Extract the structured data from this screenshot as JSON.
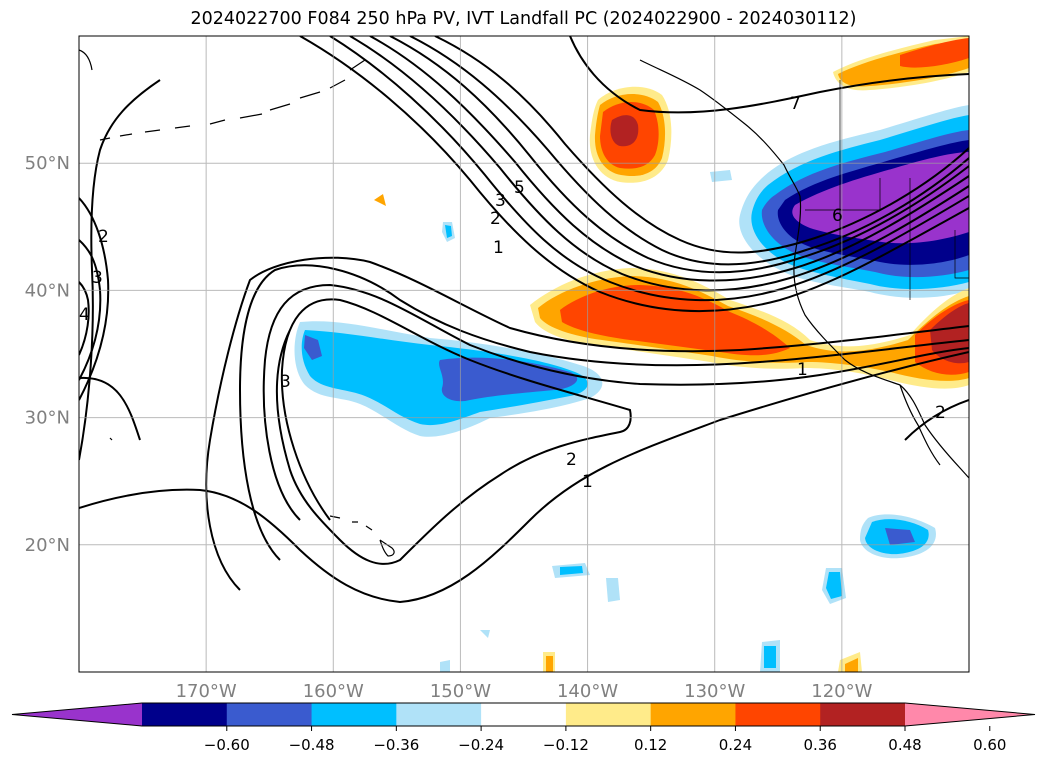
{
  "title": "2024022700 F084 250 hPa PV, IVT Landfall PC (2024022900 - 2024030112)",
  "map": {
    "lon_range": [
      -180,
      -110
    ],
    "lat_range": [
      10,
      60
    ],
    "projection": "PlateCarree",
    "grid": true,
    "lon_ticks": [
      {
        "value": -170,
        "label": "170°W"
      },
      {
        "value": -160,
        "label": "160°W"
      },
      {
        "value": -150,
        "label": "150°W"
      },
      {
        "value": -140,
        "label": "140°W"
      },
      {
        "value": -130,
        "label": "130°W"
      },
      {
        "value": -120,
        "label": "120°W"
      }
    ],
    "lat_ticks": [
      {
        "value": 20,
        "label": "20°N"
      },
      {
        "value": 30,
        "label": "30°N"
      },
      {
        "value": 40,
        "label": "40°N"
      },
      {
        "value": 50,
        "label": "50°N"
      }
    ],
    "contour_labels": [
      "7",
      "5",
      "3",
      "2",
      "1",
      "6",
      "1",
      "2",
      "1",
      "3",
      "2",
      "3",
      "4",
      "2"
    ],
    "tick_label_color": "#808080",
    "contour_color": "#000000",
    "coastline_color": "#000000"
  },
  "colorbar": {
    "extend": "both",
    "segments": [
      {
        "color": "#9933CC"
      },
      {
        "color": "#00008B"
      },
      {
        "color": "#3A5BCF"
      },
      {
        "color": "#00BFFF"
      },
      {
        "color": "#B0E2F8"
      },
      {
        "color": "#FFFFFF"
      },
      {
        "color": "#FFEB8A"
      },
      {
        "color": "#FFA500"
      },
      {
        "color": "#FF4500"
      },
      {
        "color": "#B22222"
      },
      {
        "color": "#FF88AA"
      }
    ],
    "ticks": [
      "−0.60",
      "−0.48",
      "−0.36",
      "−0.24",
      "−0.12",
      "0.12",
      "0.24",
      "0.36",
      "0.48",
      "0.60"
    ]
  }
}
